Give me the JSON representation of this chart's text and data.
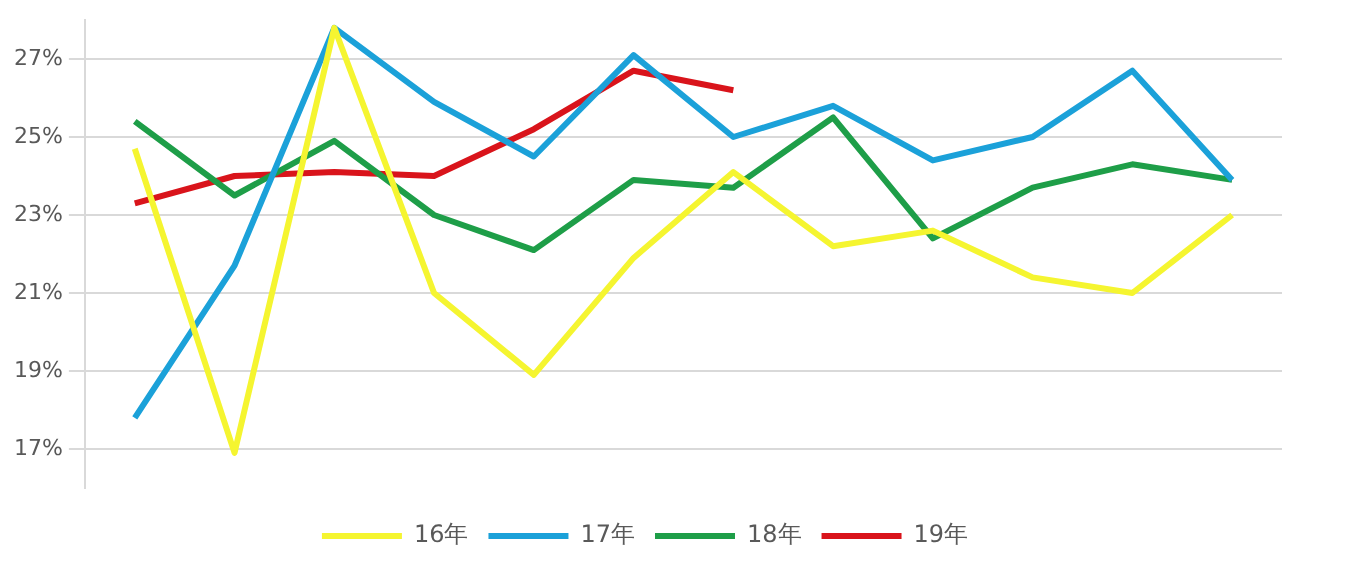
{
  "chart_data": {
    "type": "line",
    "categories": [
      null,
      null,
      null,
      null,
      null,
      null,
      null,
      null,
      null,
      null,
      null,
      null
    ],
    "series": [
      {
        "name": "16年",
        "color": "#f5f530",
        "values": [
          24.7,
          16.9,
          27.8,
          21.0,
          18.9,
          21.9,
          24.1,
          22.2,
          22.6,
          21.4,
          21.0,
          23.0
        ]
      },
      {
        "name": "17年",
        "color": "#1ba1d9",
        "values": [
          17.8,
          21.7,
          27.8,
          25.9,
          24.5,
          27.1,
          25.0,
          25.8,
          24.4,
          25.0,
          26.7,
          23.9
        ]
      },
      {
        "name": "18年",
        "color": "#1e9e48",
        "values": [
          25.4,
          23.5,
          24.9,
          23.0,
          22.1,
          23.9,
          23.7,
          25.5,
          22.4,
          23.7,
          24.3,
          23.9
        ]
      },
      {
        "name": "19年",
        "color": "#d9141b",
        "values": [
          23.3,
          24.0,
          24.1,
          24.0,
          25.2,
          26.7,
          26.2,
          null,
          null,
          null,
          null,
          null
        ]
      }
    ],
    "ylim": [
      16,
      28
    ],
    "yticks": [
      {
        "value": 17,
        "label": "17%"
      },
      {
        "value": 19,
        "label": "19%"
      },
      {
        "value": 21,
        "label": "21%"
      },
      {
        "value": 23,
        "label": "23%"
      },
      {
        "value": 25,
        "label": "25%"
      },
      {
        "value": 27,
        "label": "27%"
      }
    ],
    "grid": "y",
    "legend": "bottom",
    "tick_labels": "y",
    "marker": "none",
    "line_style": "solid"
  }
}
